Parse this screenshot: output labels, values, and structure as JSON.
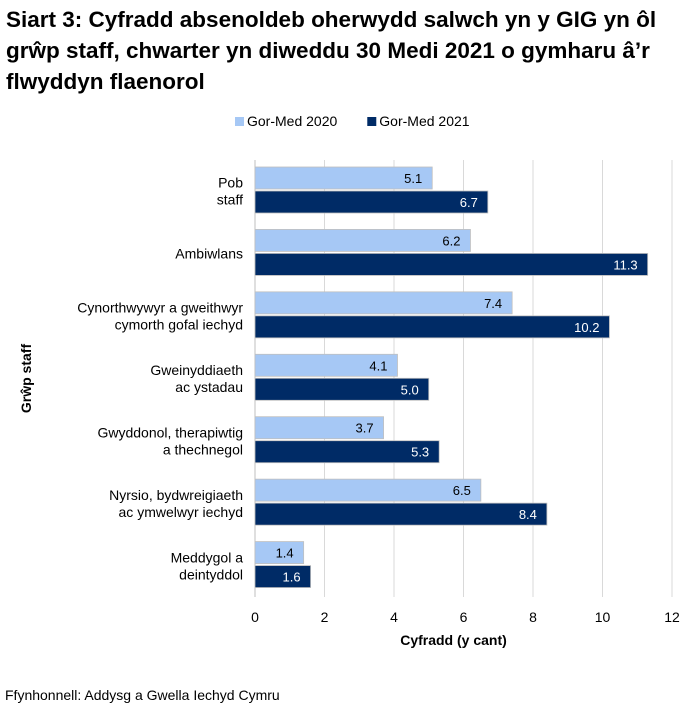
{
  "chart_data": {
    "type": "bar",
    "orientation": "horizontal",
    "title": "Siart 3: Cyfradd absenoldeb oherwydd salwch yn y GIG yn ôl grŵp staff, chwarter yn diweddu 30 Medi 2021 o gymharu â’r flwyddyn flaenorol",
    "xlabel": "Cyfradd (y cant)",
    "ylabel": "Grŵp staff",
    "xlim": [
      0,
      12
    ],
    "xticks": [
      0,
      2,
      4,
      6,
      8,
      10,
      12
    ],
    "grid": true,
    "legend_position": "top",
    "categories": [
      [
        "Pob",
        "staff"
      ],
      [
        "Ambiwlans"
      ],
      [
        "Cynorthwywyr a gweithwyr",
        "cymorth gofal iechyd"
      ],
      [
        "Gweinyddiaeth",
        "ac ystadau"
      ],
      [
        "Gwyddonol, therapiwtig",
        "a thechnegol"
      ],
      [
        "Nyrsio, bydwreigiaeth",
        "ac ymwelwyr iechyd"
      ],
      [
        "Meddygol a",
        "deintyddol"
      ]
    ],
    "series": [
      {
        "name": "Gor-Med 2020",
        "color": "#a6c8f5",
        "label_color": "#000000",
        "values": [
          5.1,
          6.2,
          7.4,
          4.1,
          3.7,
          6.5,
          1.4
        ]
      },
      {
        "name": "Gor-Med 2021",
        "color": "#002b66",
        "label_color": "#ffffff",
        "values": [
          6.7,
          11.3,
          10.2,
          5.0,
          5.3,
          8.4,
          1.6
        ]
      }
    ],
    "source": "Ffynhonnell: Addysg a Gwella Iechyd Cymru"
  }
}
